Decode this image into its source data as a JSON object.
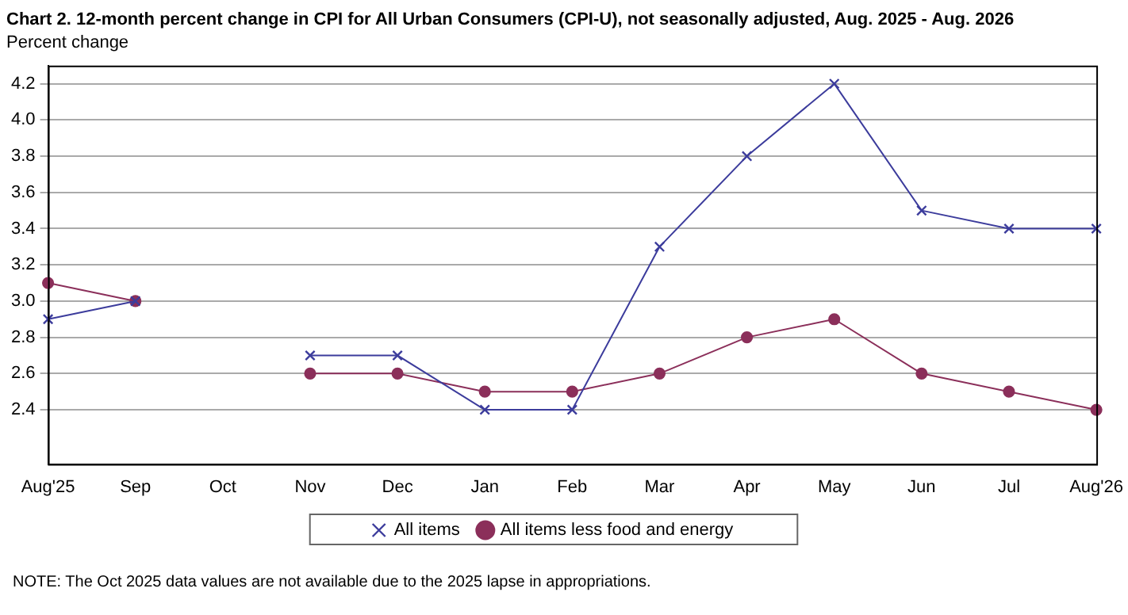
{
  "chart_data": {
    "type": "line",
    "title": "Chart 2. 12-month percent change in CPI for All Urban Consumers (CPI-U), not seasonally adjusted, Aug. 2025 - Aug. 2026",
    "ylabel": "Percent change",
    "categories": [
      "Aug'25",
      "Sep",
      "Oct",
      "Nov",
      "Dec",
      "Jan",
      "Feb",
      "Mar",
      "Apr",
      "May",
      "Jun",
      "Jul",
      "Aug'26"
    ],
    "series": [
      {
        "name": "All items",
        "color": "#3c3c9c",
        "marker": "cross",
        "values": [
          2.9,
          3.0,
          null,
          2.7,
          2.7,
          2.4,
          2.4,
          3.3,
          3.8,
          4.2,
          3.5,
          3.4,
          3.4
        ]
      },
      {
        "name": "All items less food and energy",
        "color": "#8b2f5a",
        "marker": "circle",
        "values": [
          3.1,
          3.0,
          null,
          2.6,
          2.6,
          2.5,
          2.5,
          2.6,
          2.8,
          2.9,
          2.6,
          2.5,
          2.4
        ]
      }
    ],
    "ylim": [
      2.1,
      4.3
    ],
    "yticks": [
      {
        "value": 2.4,
        "label": "2.4"
      },
      {
        "value": 2.6,
        "label": "2.6"
      },
      {
        "value": 2.8,
        "label": "2.8"
      },
      {
        "value": 3,
        "label": "3.0"
      },
      {
        "value": 3.2,
        "label": "3.2"
      },
      {
        "value": 3.4,
        "label": "3.4"
      },
      {
        "value": 3.6,
        "label": "3.6"
      },
      {
        "value": 3.8,
        "label": "3.8"
      },
      {
        "value": 4,
        "label": "4.0"
      },
      {
        "value": 4.2,
        "label": "4.2"
      }
    ],
    "grid": "y",
    "legend": "bottom",
    "line_style": "solid",
    "annotations": [
      "NOTE: The Oct 2025 data values are not available due to the 2025 lapse in appropriations."
    ]
  }
}
